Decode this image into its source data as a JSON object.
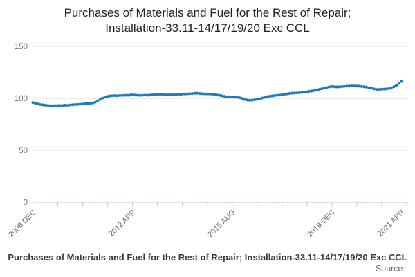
{
  "header": {
    "title_line1": "Purchases of Materials and Fuel for the Rest of Repair;",
    "title_line2": "Installation-33.11-14/17/19/20 Exc CCL"
  },
  "footer": {
    "caption": "Purchases of Materials and Fuel for the Rest of Repair; Installation-33.11-14/17/19/20 Exc CCL",
    "source_label": "Source:"
  },
  "colors": {
    "series_blue": "#1f7bb6",
    "gridline": "#d9d9d9",
    "axis": "#c2cfe6",
    "tick_text": "#6f6f6f"
  },
  "chart_data": {
    "type": "line",
    "title": "Purchases of Materials and Fuel for the Rest of Repair; Installation-33.11-14/17/19/20 Exc CCL",
    "xlabel": "",
    "ylabel": "",
    "frequency": "monthly",
    "x_first_label": "2008 DEC",
    "x_last_label": "2021 APR",
    "x_range_months": 148,
    "x_tick_labels": [
      {
        "month": 0,
        "label": "2008 DEC"
      },
      {
        "month": 40,
        "label": "2012 APR"
      },
      {
        "month": 80,
        "label": "2015 AUG"
      },
      {
        "month": 120,
        "label": "2018 DEC"
      },
      {
        "month": 148,
        "label": "2021 APR"
      }
    ],
    "y_ticks": [
      0,
      50,
      100,
      150
    ],
    "ylim": [
      0,
      160
    ],
    "grid": true,
    "legend": "none",
    "series": [
      {
        "name": "Purchases of Materials and Fuel for the Rest of Repair; Installation-33.11-14/17/19/20 Exc CCL",
        "color": "#1f7bb6",
        "values": [
          95.9,
          95.2,
          94.6,
          94.1,
          93.7,
          93.4,
          93.2,
          93.0,
          92.9,
          93.0,
          93.1,
          93.0,
          93.2,
          93.4,
          93.3,
          93.6,
          93.8,
          94.0,
          94.2,
          94.4,
          94.5,
          94.7,
          94.9,
          95.1,
          95.4,
          96.2,
          97.5,
          99.0,
          100.3,
          101.2,
          101.9,
          102.3,
          102.5,
          102.6,
          102.5,
          102.7,
          102.8,
          103.0,
          102.9,
          103.1,
          103.4,
          103.2,
          103.0,
          102.8,
          102.9,
          103.1,
          103.0,
          103.2,
          103.3,
          103.5,
          103.6,
          103.8,
          103.7,
          103.5,
          103.4,
          103.6,
          103.5,
          103.7,
          103.8,
          103.9,
          104.0,
          104.2,
          104.3,
          104.4,
          104.6,
          104.8,
          104.9,
          104.6,
          104.4,
          104.3,
          104.2,
          104.1,
          104.0,
          103.6,
          103.2,
          102.8,
          102.4,
          101.9,
          101.5,
          101.3,
          101.2,
          101.1,
          101.0,
          100.6,
          99.8,
          98.9,
          98.4,
          98.2,
          98.3,
          98.6,
          99.0,
          99.6,
          100.3,
          101.0,
          101.5,
          101.9,
          102.3,
          102.6,
          102.9,
          103.2,
          103.5,
          103.9,
          104.3,
          104.6,
          104.9,
          105.1,
          105.2,
          105.4,
          105.6,
          105.9,
          106.3,
          106.7,
          107.1,
          107.6,
          108.1,
          108.6,
          109.2,
          109.8,
          110.4,
          111.0,
          111.5,
          111.2,
          111.0,
          111.1,
          111.3,
          111.5,
          111.7,
          111.9,
          112.0,
          111.9,
          111.8,
          111.7,
          111.5,
          111.2,
          110.8,
          110.3,
          109.7,
          109.1,
          108.6,
          108.5,
          108.7,
          108.9,
          109.1,
          109.4,
          110.2,
          111.2,
          112.6,
          114.4,
          116.3
        ]
      }
    ]
  }
}
